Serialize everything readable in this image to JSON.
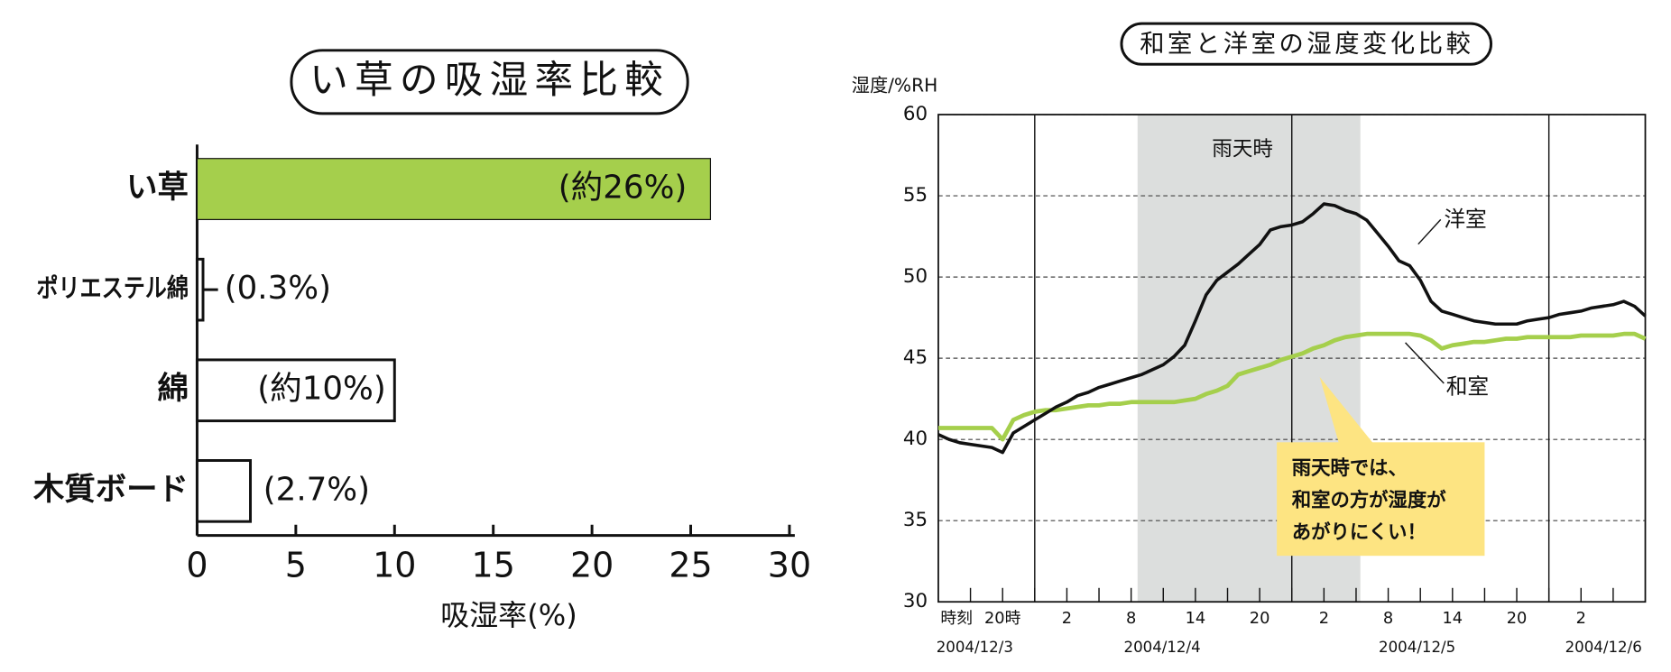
{
  "chart_data": [
    {
      "type": "hbar",
      "title": "い草の吸湿率比較",
      "categories": [
        "い草",
        "ポリエステル綿",
        "綿",
        "木質ボード"
      ],
      "values": [
        26,
        0.3,
        10,
        2.7
      ],
      "value_labels": [
        "(約26%)",
        "(0.3%)",
        "(約10%)",
        "(2.7%)"
      ],
      "colors": [
        "#a5cf4c",
        "#ffffff",
        "#ffffff",
        "#ffffff"
      ],
      "xlabel": "吸湿率(%)",
      "xlim": [
        0,
        30
      ],
      "xticks": [
        0,
        5,
        10,
        15,
        20,
        25,
        30
      ]
    },
    {
      "type": "line",
      "title": "和室と洋室の湿度変化比較",
      "ylabel": "湿度/%RH",
      "xlabel": "時刻",
      "x": [
        null,
        null,
        null,
        null,
        null,
        null,
        "20時",
        null,
        null,
        null,
        null,
        null,
        "2",
        null,
        null,
        null,
        null,
        null,
        "8",
        null,
        null,
        null,
        null,
        null,
        "14",
        null,
        null,
        null,
        null,
        null,
        "20",
        null,
        null,
        null,
        null,
        null,
        "2",
        null,
        null,
        null,
        null,
        null,
        "8",
        null,
        null,
        null,
        null,
        null,
        "14",
        null,
        null,
        null,
        null,
        null,
        "20",
        null,
        null,
        null,
        null,
        null,
        "2",
        null,
        null,
        null,
        null,
        null,
        null
      ],
      "dates": [
        "2004/12/3",
        "2004/12/4",
        "2004/12/5",
        "2004/12/6"
      ],
      "ylim": [
        30,
        60
      ],
      "yticks": [
        30,
        35,
        40,
        45,
        50,
        55,
        60
      ],
      "grid": true,
      "series": [
        {
          "name": "洋室",
          "color": "#111111",
          "values": [
            40.3,
            40.0,
            39.8,
            39.7,
            39.6,
            39.5,
            39.2,
            40.4,
            40.8,
            41.2,
            41.6,
            42.0,
            42.3,
            42.7,
            42.9,
            43.2,
            43.4,
            43.6,
            43.8,
            44.0,
            44.3,
            44.6,
            45.1,
            45.8,
            47.3,
            48.9,
            49.8,
            50.3,
            50.8,
            51.4,
            52.0,
            52.9,
            53.1,
            53.2,
            53.4,
            53.9,
            54.5,
            54.4,
            54.1,
            53.9,
            53.5,
            52.7,
            51.9,
            51.0,
            50.7,
            49.8,
            48.5,
            47.9,
            47.7,
            47.5,
            47.3,
            47.2,
            47.1,
            47.1,
            47.1,
            47.3,
            47.4,
            47.5,
            47.7,
            47.8,
            47.9,
            48.1,
            48.2,
            48.3,
            48.5,
            48.2,
            47.6
          ]
        },
        {
          "name": "和室",
          "color": "#a5cf4c",
          "values": [
            40.7,
            40.7,
            40.7,
            40.7,
            40.7,
            40.7,
            40.0,
            41.2,
            41.5,
            41.7,
            41.8,
            41.8,
            41.9,
            42.0,
            42.1,
            42.1,
            42.2,
            42.2,
            42.3,
            42.3,
            42.3,
            42.3,
            42.3,
            42.4,
            42.5,
            42.8,
            43.0,
            43.3,
            44.0,
            44.2,
            44.4,
            44.6,
            44.9,
            45.1,
            45.3,
            45.6,
            45.8,
            46.1,
            46.3,
            46.4,
            46.5,
            46.5,
            46.5,
            46.5,
            46.5,
            46.4,
            46.1,
            45.6,
            45.8,
            45.9,
            46.0,
            46.0,
            46.1,
            46.2,
            46.2,
            46.3,
            46.3,
            46.3,
            46.3,
            46.3,
            46.4,
            46.4,
            46.4,
            46.4,
            46.5,
            46.5,
            46.2
          ]
        }
      ],
      "annotation": "雨天時",
      "callout": [
        "雨天時では、",
        "和室の方が湿度が",
        "あがりにくい！"
      ]
    }
  ]
}
